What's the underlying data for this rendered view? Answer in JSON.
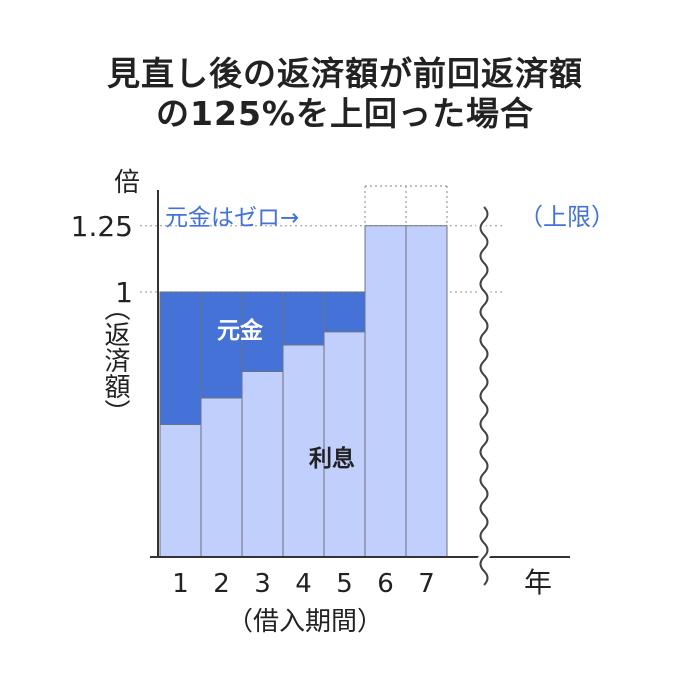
{
  "title": {
    "line1": "見直し後の返済額が前回返済額",
    "line2": "の125%を上回った場合"
  },
  "chart_data": {
    "type": "bar",
    "stacked": true,
    "categories": [
      "1",
      "2",
      "3",
      "4",
      "5",
      "6",
      "7"
    ],
    "series": [
      {
        "name": "利息",
        "color": "#c0cffb",
        "values": [
          0.5,
          0.6,
          0.7,
          0.8,
          0.85,
          1.25,
          1.25
        ]
      },
      {
        "name": "元金",
        "color": "#4472d6",
        "values": [
          0.5,
          0.4,
          0.3,
          0.2,
          0.15,
          0.0,
          0.0
        ]
      }
    ],
    "overflow_outline": {
      "categories": [
        "6",
        "7"
      ],
      "top_value": 1.4
    },
    "ylim": [
      0,
      1.4
    ],
    "yticks": [
      {
        "value": 1.25,
        "label": "1.25"
      },
      {
        "value": 1.0,
        "label": "1"
      }
    ],
    "y_unit": "倍",
    "ylabel": "（返済額）",
    "xlabel": "（借入期間）",
    "x_unit": "年",
    "annotations": {
      "principal_zero": "元金はゼロ→",
      "upper_limit": "（上限）",
      "principal_label": "元金",
      "interest_label": "利息"
    },
    "grid": "dotted lines at 1 and 1.25",
    "axis_break": true,
    "colors": {
      "principal": "#4472d6",
      "interest": "#c0cffb",
      "annotation_text": "#4472d6",
      "bar_edge": "#6b7280"
    }
  }
}
